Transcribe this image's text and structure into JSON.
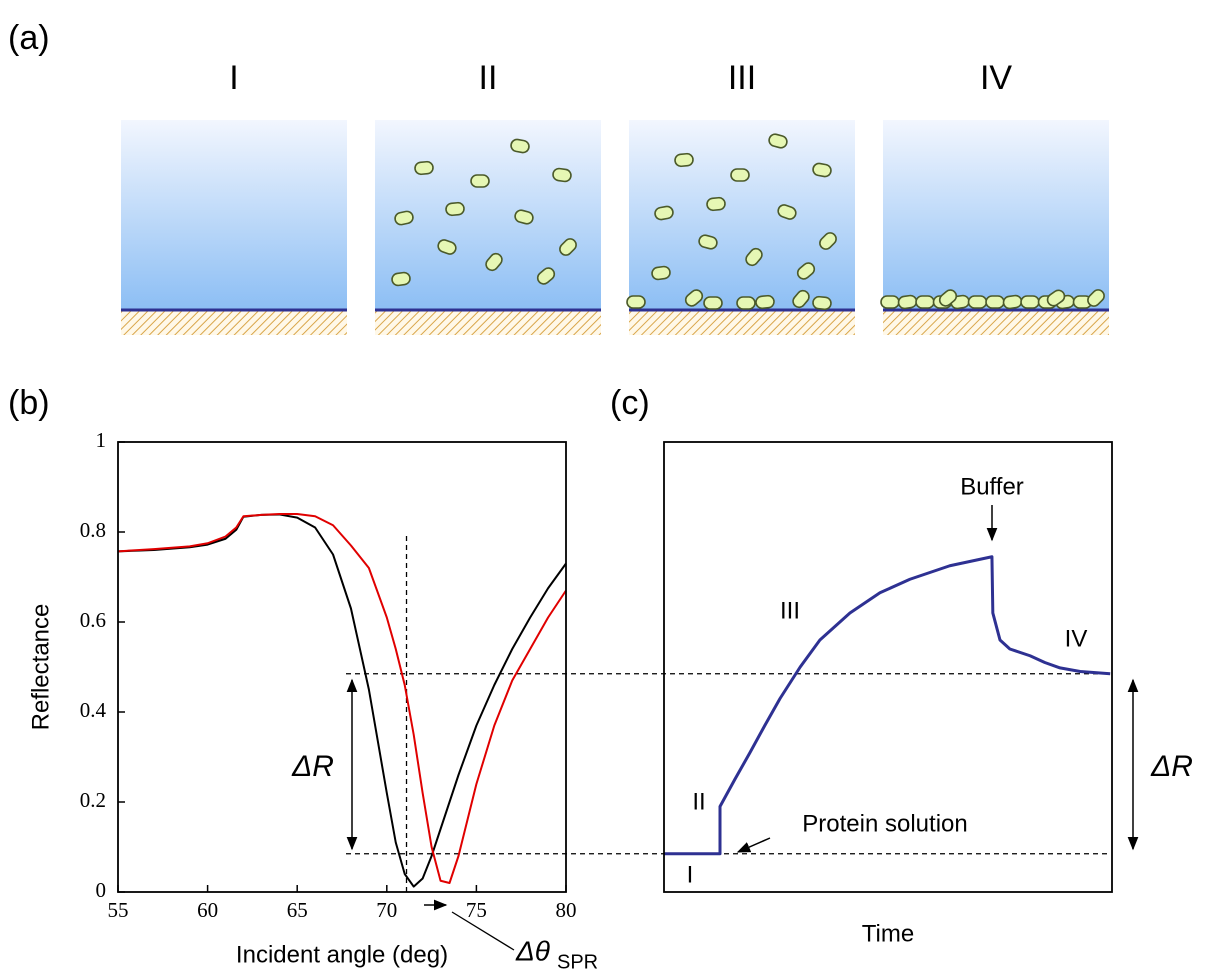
{
  "panel_labels": [
    "(a)",
    "(b)",
    "(c)"
  ],
  "diagram": {
    "stages": [
      "I",
      "II",
      "III",
      "IV"
    ]
  },
  "chart_data": [
    {
      "type": "line",
      "x_label": "Incident angle (deg)",
      "y_label": "Reflectance",
      "xlim": [
        55,
        80
      ],
      "ylim": [
        0,
        1
      ],
      "xticks": [
        55,
        60,
        65,
        70,
        75,
        80
      ],
      "yticks": [
        0,
        0.2,
        0.4,
        0.6,
        0.8,
        1
      ],
      "x": [
        55,
        57,
        59,
        60,
        61,
        61.6,
        62,
        63,
        64,
        65,
        66,
        67,
        68,
        69,
        70,
        70.5,
        71,
        71.5,
        72,
        72.5,
        73,
        73.5,
        74,
        75,
        76,
        77,
        78,
        79,
        80
      ],
      "series": [
        {
          "color": "#000000",
          "values": [
            0.757,
            0.76,
            0.766,
            0.772,
            0.785,
            0.805,
            0.834,
            0.838,
            0.839,
            0.832,
            0.81,
            0.75,
            0.63,
            0.45,
            0.22,
            0.11,
            0.04,
            0.012,
            0.03,
            0.08,
            0.14,
            0.2,
            0.26,
            0.37,
            0.46,
            0.54,
            0.61,
            0.675,
            0.73
          ]
        },
        {
          "color": "#e00000",
          "values": [
            0.757,
            0.762,
            0.768,
            0.775,
            0.79,
            0.81,
            0.835,
            0.838,
            0.84,
            0.84,
            0.835,
            0.815,
            0.77,
            0.72,
            0.61,
            0.54,
            0.46,
            0.35,
            0.22,
            0.1,
            0.025,
            0.02,
            0.08,
            0.24,
            0.37,
            0.47,
            0.54,
            0.61,
            0.67
          ]
        }
      ],
      "reference_lines": [
        {
          "axis": "x",
          "value": 71.1,
          "to": 0.8
        },
        {
          "axis": "y",
          "value": 0.485
        },
        {
          "axis": "y",
          "value": 0.085
        }
      ],
      "annotations": {
        "delta_r": "ΔR",
        "delta_theta": "Δθ",
        "delta_theta_sub": "SPR"
      }
    },
    {
      "type": "line",
      "x_label": "Time",
      "xlim": [
        0,
        100
      ],
      "ylim": [
        0,
        1
      ],
      "x": [
        0,
        12.5,
        12.5,
        15.8,
        19.2,
        22.5,
        25.9,
        30.4,
        34.8,
        41.5,
        48.2,
        54.9,
        63.8,
        73.2,
        73.4,
        75,
        77.2,
        81.7,
        85,
        88.4,
        92.9,
        99.6
      ],
      "series": [
        {
          "color": "#2e3192",
          "values": [
            0.085,
            0.085,
            0.19,
            0.25,
            0.31,
            0.37,
            0.43,
            0.5,
            0.56,
            0.62,
            0.665,
            0.695,
            0.725,
            0.745,
            0.62,
            0.56,
            0.54,
            0.525,
            0.51,
            0.498,
            0.49,
            0.485
          ]
        }
      ],
      "annotations": {
        "buffer": "Buffer",
        "protein": "Protein solution",
        "stage_i": "I",
        "stage_ii": "II",
        "stage_iii": "III",
        "stage_iv": "IV",
        "delta_r": "ΔR"
      }
    }
  ]
}
